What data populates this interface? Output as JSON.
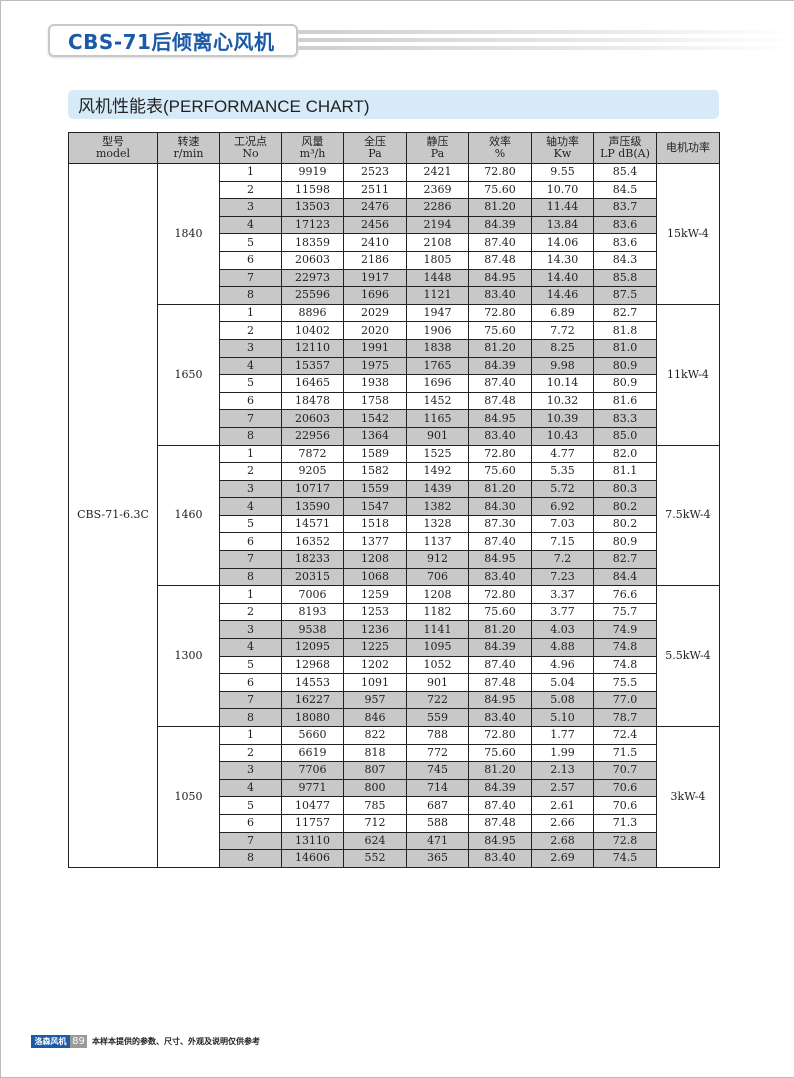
{
  "header": {
    "title": "CBS-71后倾离心风机"
  },
  "section": {
    "title": "风机性能表(PERFORMANCE CHART)"
  },
  "table": {
    "columns": [
      [
        "型号",
        "model"
      ],
      [
        "转速",
        "r/min"
      ],
      [
        "工况点",
        "No"
      ],
      [
        "风量",
        "m³/h"
      ],
      [
        "全压",
        "Pa"
      ],
      [
        "静压",
        "Pa"
      ],
      [
        "效率",
        "%"
      ],
      [
        "轴功率",
        "Kw"
      ],
      [
        "声压级",
        "LP dB(A)"
      ],
      [
        "电机功率",
        ""
      ]
    ],
    "model": "CBS-71-6.3C",
    "groups": [
      {
        "speed": "1840",
        "motor": "15kW-4",
        "rows": [
          [
            "1",
            "9919",
            "2523",
            "2421",
            "72.80",
            "9.55",
            "85.4"
          ],
          [
            "2",
            "11598",
            "2511",
            "2369",
            "75.60",
            "10.70",
            "84.5"
          ],
          [
            "3",
            "13503",
            "2476",
            "2286",
            "81.20",
            "11.44",
            "83.7"
          ],
          [
            "4",
            "17123",
            "2456",
            "2194",
            "84.39",
            "13.84",
            "83.6"
          ],
          [
            "5",
            "18359",
            "2410",
            "2108",
            "87.40",
            "14.06",
            "83.6"
          ],
          [
            "6",
            "20603",
            "2186",
            "1805",
            "87.48",
            "14.30",
            "84.3"
          ],
          [
            "7",
            "22973",
            "1917",
            "1448",
            "84.95",
            "14.40",
            "85.8"
          ],
          [
            "8",
            "25596",
            "1696",
            "1121",
            "83.40",
            "14.46",
            "87.5"
          ]
        ]
      },
      {
        "speed": "1650",
        "motor": "11kW-4",
        "rows": [
          [
            "1",
            "8896",
            "2029",
            "1947",
            "72.80",
            "6.89",
            "82.7"
          ],
          [
            "2",
            "10402",
            "2020",
            "1906",
            "75.60",
            "7.72",
            "81.8"
          ],
          [
            "3",
            "12110",
            "1991",
            "1838",
            "81.20",
            "8.25",
            "81.0"
          ],
          [
            "4",
            "15357",
            "1975",
            "1765",
            "84.39",
            "9.98",
            "80.9"
          ],
          [
            "5",
            "16465",
            "1938",
            "1696",
            "87.40",
            "10.14",
            "80.9"
          ],
          [
            "6",
            "18478",
            "1758",
            "1452",
            "87.48",
            "10.32",
            "81.6"
          ],
          [
            "7",
            "20603",
            "1542",
            "1165",
            "84.95",
            "10.39",
            "83.3"
          ],
          [
            "8",
            "22956",
            "1364",
            "901",
            "83.40",
            "10.43",
            "85.0"
          ]
        ]
      },
      {
        "speed": "1460",
        "motor": "7.5kW-4",
        "rows": [
          [
            "1",
            "7872",
            "1589",
            "1525",
            "72.80",
            "4.77",
            "82.0"
          ],
          [
            "2",
            "9205",
            "1582",
            "1492",
            "75.60",
            "5.35",
            "81.1"
          ],
          [
            "3",
            "10717",
            "1559",
            "1439",
            "81.20",
            "5.72",
            "80.3"
          ],
          [
            "4",
            "13590",
            "1547",
            "1382",
            "84.30",
            "6.92",
            "80.2"
          ],
          [
            "5",
            "14571",
            "1518",
            "1328",
            "87.30",
            "7.03",
            "80.2"
          ],
          [
            "6",
            "16352",
            "1377",
            "1137",
            "87.40",
            "7.15",
            "80.9"
          ],
          [
            "7",
            "18233",
            "1208",
            "912",
            "84.95",
            "7.2",
            "82.7"
          ],
          [
            "8",
            "20315",
            "1068",
            "706",
            "83.40",
            "7.23",
            "84.4"
          ]
        ]
      },
      {
        "speed": "1300",
        "motor": "5.5kW-4",
        "rows": [
          [
            "1",
            "7006",
            "1259",
            "1208",
            "72.80",
            "3.37",
            "76.6"
          ],
          [
            "2",
            "8193",
            "1253",
            "1182",
            "75.60",
            "3.77",
            "75.7"
          ],
          [
            "3",
            "9538",
            "1236",
            "1141",
            "81.20",
            "4.03",
            "74.9"
          ],
          [
            "4",
            "12095",
            "1225",
            "1095",
            "84.39",
            "4.88",
            "74.8"
          ],
          [
            "5",
            "12968",
            "1202",
            "1052",
            "87.40",
            "4.96",
            "74.8"
          ],
          [
            "6",
            "14553",
            "1091",
            "901",
            "87.48",
            "5.04",
            "75.5"
          ],
          [
            "7",
            "16227",
            "957",
            "722",
            "84.95",
            "5.08",
            "77.0"
          ],
          [
            "8",
            "18080",
            "846",
            "559",
            "83.40",
            "5.10",
            "78.7"
          ]
        ]
      },
      {
        "speed": "1050",
        "motor": "3kW-4",
        "rows": [
          [
            "1",
            "5660",
            "822",
            "788",
            "72.80",
            "1.77",
            "72.4"
          ],
          [
            "2",
            "6619",
            "818",
            "772",
            "75.60",
            "1.99",
            "71.5"
          ],
          [
            "3",
            "7706",
            "807",
            "745",
            "81.20",
            "2.13",
            "70.7"
          ],
          [
            "4",
            "9771",
            "800",
            "714",
            "84.39",
            "2.57",
            "70.6"
          ],
          [
            "5",
            "10477",
            "785",
            "687",
            "87.40",
            "2.61",
            "70.6"
          ],
          [
            "6",
            "11757",
            "712",
            "588",
            "87.48",
            "2.66",
            "71.3"
          ],
          [
            "7",
            "13110",
            "624",
            "471",
            "84.95",
            "2.68",
            "72.8"
          ],
          [
            "8",
            "14606",
            "552",
            "365",
            "83.40",
            "2.69",
            "74.5"
          ]
        ]
      }
    ]
  },
  "footer": {
    "brand": "洛森风机",
    "page": "89",
    "note": "本样本提供的参数、尺寸、外观及说明仅供参考"
  },
  "colors": {
    "brand_blue": "#1a5aa6",
    "section_bg": "#d6eaf8",
    "row_shade": "#c8c8c8"
  }
}
